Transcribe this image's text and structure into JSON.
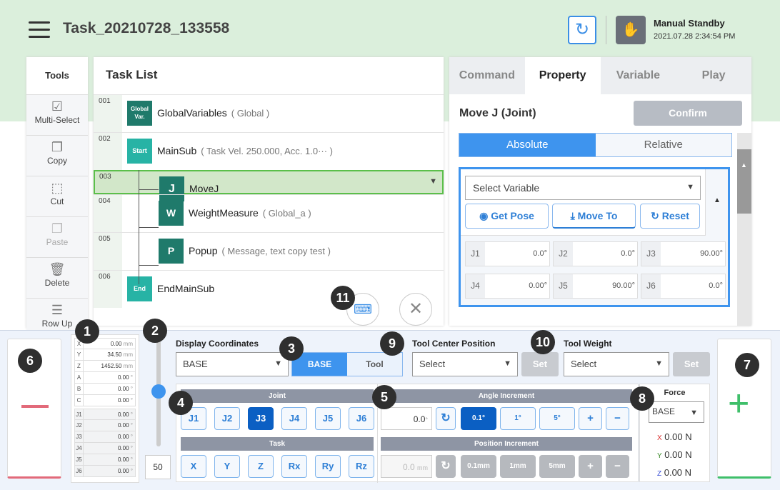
{
  "header": {
    "title": "Task_20210728_133558",
    "mode": "Manual Standby",
    "time": "2021.07.28 2:34:54 PM"
  },
  "tools": {
    "title": "Tools",
    "items": [
      {
        "label": "Multi-Select",
        "icon": "multi-select-icon"
      },
      {
        "label": "Copy",
        "icon": "copy-icon"
      },
      {
        "label": "Cut",
        "icon": "cut-icon"
      },
      {
        "label": "Paste",
        "icon": "paste-icon",
        "disabled": true
      },
      {
        "label": "Delete",
        "icon": "trash-icon"
      },
      {
        "label": "Row Up",
        "icon": "row-up-icon"
      }
    ]
  },
  "tasklist": {
    "title": "Task List",
    "rows": [
      {
        "num": "001",
        "badge": "Global Var.",
        "name": "GlobalVariables",
        "sub": "( Global )"
      },
      {
        "num": "002",
        "badge": "Start",
        "name": "MainSub",
        "sub": "( Task Vel. 250.000, Acc. 1.0··· )"
      },
      {
        "num": "003",
        "badge": "J",
        "name": "MoveJ",
        "sub": ""
      },
      {
        "num": "004",
        "badge": "W",
        "name": "WeightMeasure",
        "sub": "( Global_a )"
      },
      {
        "num": "005",
        "badge": "P",
        "name": "Popup",
        "sub": "( Message, text copy test )"
      },
      {
        "num": "006",
        "badge": "End",
        "name": "EndMainSub",
        "sub": ""
      }
    ]
  },
  "right": {
    "tabs": [
      "Command",
      "Property",
      "Variable",
      "Play"
    ],
    "active_tab": "Property",
    "command_title": "Move J (Joint)",
    "confirm": "Confirm",
    "abs": "Absolute",
    "rel": "Relative",
    "select_variable": "Select Variable",
    "get_pose": "Get Pose",
    "move_to": "Move To",
    "reset": "Reset",
    "joints": [
      {
        "l": "J1",
        "v": "0.0°"
      },
      {
        "l": "J2",
        "v": "0.0°"
      },
      {
        "l": "J3",
        "v": "90.00°"
      },
      {
        "l": "J4",
        "v": "0.00°"
      },
      {
        "l": "J5",
        "v": "90.00°"
      },
      {
        "l": "J6",
        "v": "0.0°"
      }
    ]
  },
  "bottom": {
    "task_pos": [
      {
        "k": "X",
        "v": "0.00",
        "u": "mm"
      },
      {
        "k": "Y",
        "v": "34.50",
        "u": "mm"
      },
      {
        "k": "Z",
        "v": "1452.50",
        "u": "mm"
      },
      {
        "k": "A",
        "v": "0.00",
        "u": "°"
      },
      {
        "k": "B",
        "v": "0.00",
        "u": "°"
      },
      {
        "k": "C",
        "v": "0.00",
        "u": "°"
      }
    ],
    "joint_pos": [
      {
        "k": "J1",
        "v": "0.00",
        "u": "°"
      },
      {
        "k": "J2",
        "v": "0.00",
        "u": "°"
      },
      {
        "k": "J3",
        "v": "0.00",
        "u": "°"
      },
      {
        "k": "J4",
        "v": "0.00",
        "u": "°"
      },
      {
        "k": "J5",
        "v": "0.00",
        "u": "°"
      },
      {
        "k": "J6",
        "v": "0.00",
        "u": "°"
      }
    ],
    "speed": "50",
    "speed_fraction": 0.5,
    "display_coord_label": "Display Coordinates",
    "display_coord": "BASE",
    "base": "BASE",
    "tool": "Tool",
    "tcp_label": "Tool Center Position",
    "tcp": "Select",
    "set": "Set",
    "weight_label": "Tool Weight",
    "weight": "Select",
    "joint_header": "Joint",
    "joint_btns": [
      "J1",
      "J2",
      "J3",
      "J4",
      "J5",
      "J6"
    ],
    "task_header": "Task",
    "task_btns": [
      "X",
      "Y",
      "Z",
      "Rx",
      "Ry",
      "Rz"
    ],
    "angle_header": "Angle Increment",
    "angle_val": "0.0",
    "angle_unit": "°",
    "angle_btns": [
      "0.1°",
      "1°",
      "5°",
      "+",
      "−"
    ],
    "pos_header": "Position Increment",
    "pos_val": "0.0",
    "pos_unit": "mm",
    "pos_btns": [
      "0.1mm",
      "1mm",
      "5mm",
      "+",
      "−"
    ],
    "force_label": "Force",
    "force_coord": "BASE",
    "force": [
      {
        "k": "X",
        "v": "0.00 N",
        "c": "#d92b2b"
      },
      {
        "k": "Y",
        "v": "0.00 N",
        "c": "#3a8a2a"
      },
      {
        "k": "Z",
        "v": "0.00 N",
        "c": "#3a4fd6"
      }
    ],
    "markers": [
      "1",
      "2",
      "3",
      "4",
      "5",
      "6",
      "7",
      "8",
      "9",
      "10",
      "11"
    ],
    "minus": "−",
    "plus": "+"
  }
}
